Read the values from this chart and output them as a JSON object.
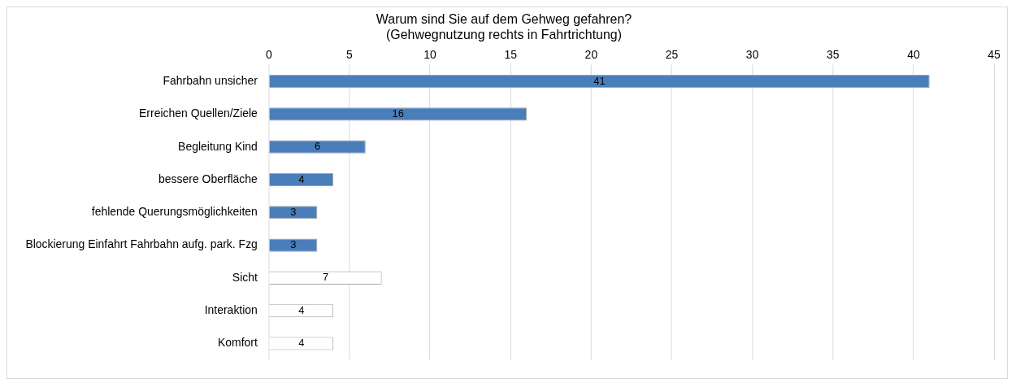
{
  "chart_data": {
    "type": "bar",
    "orientation": "horizontal",
    "title": "Warum sind Sie auf dem Gehweg gefahren?\n(Gehwegnutzung rechts in Fahrtrichtung)",
    "categories": [
      "Fahrbahn unsicher",
      "Erreichen Quellen/Ziele",
      "Begleitung Kind",
      "bessere Oberfläche",
      "fehlende Querungsmöglichkeiten",
      "Blockierung Einfahrt Fahrbahn aufg. park. Fzg",
      "Sicht",
      "Interaktion",
      "Komfort"
    ],
    "values": [
      41,
      16,
      6,
      4,
      3,
      3,
      7,
      4,
      4
    ],
    "colors": [
      "#4a7ebb",
      "#4a7ebb",
      "#4a7ebb",
      "#4a7ebb",
      "#4a7ebb",
      "#4a7ebb",
      "#ffffff",
      "#ffffff",
      "#ffffff"
    ],
    "xlim": [
      0,
      45
    ],
    "xticks": [
      0,
      5,
      10,
      15,
      20,
      25,
      30,
      35,
      40,
      45
    ],
    "grid": "x",
    "data_labels": true,
    "legend": false
  }
}
